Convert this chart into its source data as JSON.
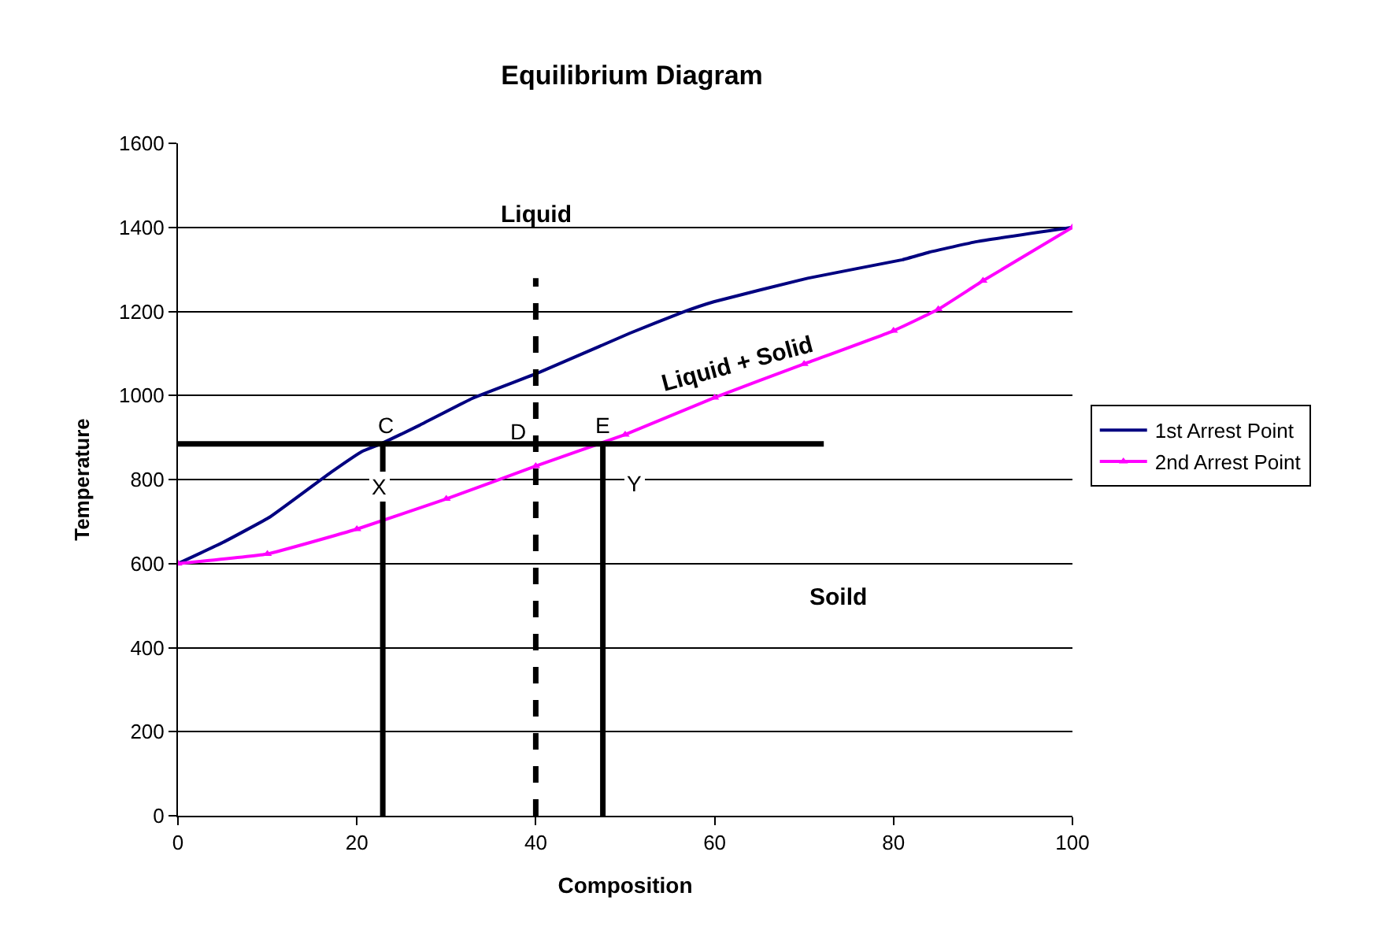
{
  "chart_data": {
    "type": "line",
    "title": "Equilibrium Diagram",
    "xlabel": "Composition",
    "ylabel": "Temperature",
    "xlim": [
      0,
      100
    ],
    "xticks": [
      0,
      20,
      40,
      60,
      80,
      100
    ],
    "ylim": [
      0,
      1600
    ],
    "yticks": [
      0,
      200,
      400,
      600,
      800,
      1000,
      1200,
      1400,
      1600
    ],
    "grid": "y",
    "legend": "right",
    "series": [
      {
        "name": "1st Arrest Point",
        "color": "#000080",
        "marker": "none",
        "x": [
          0,
          5,
          10.3,
          17.1,
          20.6,
          22.7,
          27,
          32.9,
          40.3,
          50.5,
          56.4,
          59.9,
          70.4,
          81,
          84,
          89.3,
          100
        ],
        "values": [
          600,
          650,
          711,
          817,
          867,
          885,
          929,
          993,
          1054,
          1148,
          1198,
          1223,
          1279,
          1323,
          1341,
          1366,
          1400
        ]
      },
      {
        "name": "2nd Arrest Point",
        "color": "#ff00ff",
        "marker": "triangle",
        "x": [
          0,
          10,
          20,
          30,
          40,
          50,
          60,
          70,
          80,
          85,
          90,
          100
        ],
        "values": [
          600,
          623,
          682,
          754,
          832,
          907,
          995,
          1075,
          1154,
          1205,
          1273,
          1400
        ]
      },
      {
        "color": "#000000",
        "marker": "none",
        "line_style": "solid",
        "x": [
          0,
          72.2
        ],
        "values": [
          885,
          885
        ]
      },
      {
        "color": "#000000",
        "marker": "none",
        "line_style": "solid",
        "x": [
          22.9,
          22.9
        ],
        "values": [
          0,
          885
        ]
      },
      {
        "color": "#000000",
        "marker": "none",
        "line_style": "dashed",
        "x": [
          40,
          40
        ],
        "values": [
          0,
          1279
        ]
      },
      {
        "color": "#000000",
        "marker": "none",
        "line_style": "solid",
        "x": [
          47.5,
          47.5
        ],
        "values": [
          0,
          885
        ]
      }
    ],
    "annotations": [
      "Liquid",
      "Liquid + Solid",
      "C",
      "D",
      "E",
      "X",
      "Y",
      "Soild"
    ]
  }
}
